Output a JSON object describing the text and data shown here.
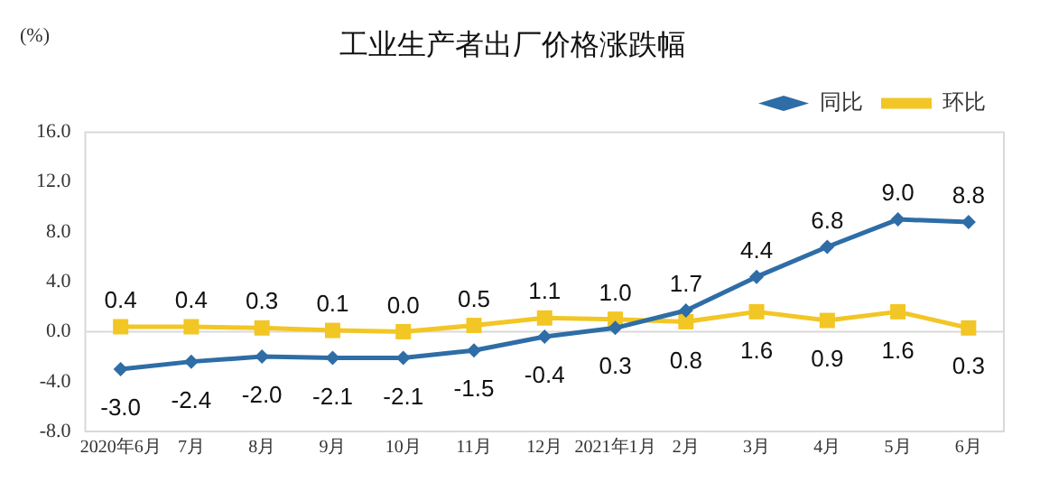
{
  "chart_data": {
    "type": "line",
    "title": "工业生产者出厂价格涨跌幅",
    "ylabel": "(%)",
    "categories": [
      "2020年6月",
      "7月",
      "8月",
      "9月",
      "10月",
      "11月",
      "12月",
      "2021年1月",
      "2月",
      "3月",
      "4月",
      "5月",
      "6月"
    ],
    "series": [
      {
        "name": "同比",
        "color": "#2e6da6",
        "marker": "diamond",
        "values": [
          -3.0,
          -2.4,
          -2.0,
          -2.1,
          -2.1,
          -1.5,
          -0.4,
          0.3,
          1.7,
          4.4,
          6.8,
          9.0,
          8.8
        ],
        "value_labels": [
          "-3.0",
          "-2.4",
          "-2.0",
          "-2.1",
          "-2.1",
          "-1.5",
          "-0.4",
          "0.3",
          "1.7",
          "4.4",
          "6.8",
          "9.0",
          "8.8"
        ]
      },
      {
        "name": "环比",
        "color": "#f2c624",
        "marker": "square",
        "values": [
          0.4,
          0.4,
          0.3,
          0.1,
          0.0,
          0.5,
          1.1,
          1.0,
          0.8,
          1.6,
          0.9,
          1.6,
          0.3
        ],
        "value_labels": [
          "0.4",
          "0.4",
          "0.3",
          "0.1",
          "0.0",
          "0.5",
          "1.1",
          "1.0",
          "0.8",
          "1.6",
          "0.9",
          "1.6",
          "0.3"
        ]
      }
    ],
    "ylim": [
      -8.0,
      16.0
    ],
    "yticks": [
      {
        "value": -8,
        "label": "-8.0"
      },
      {
        "value": -4,
        "label": "-4.0"
      },
      {
        "value": 0,
        "label": "0.0"
      },
      {
        "value": 4,
        "label": "4.0"
      },
      {
        "value": 8,
        "label": "8.0"
      },
      {
        "value": 12,
        "label": "12.0"
      },
      {
        "value": 16,
        "label": "16.0"
      }
    ],
    "ref_lines": [
      {
        "axis": "y",
        "value": 0,
        "color": "#d9d9d9"
      }
    ],
    "grid": false,
    "legend": "top right"
  }
}
